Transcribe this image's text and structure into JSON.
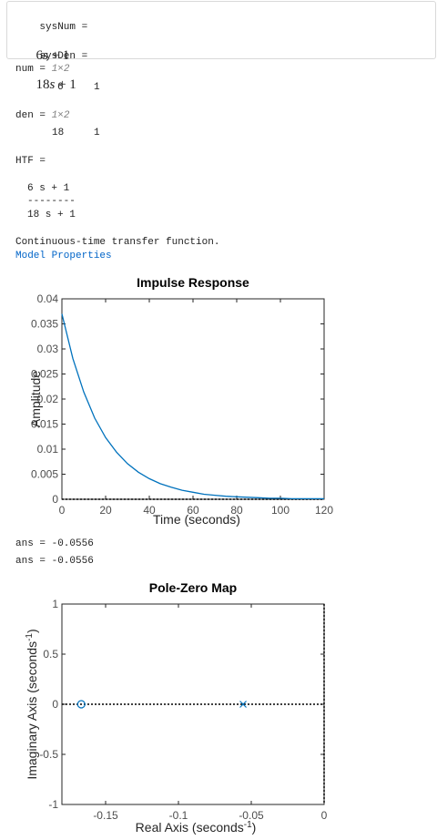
{
  "symbolic": {
    "num_label": "sysNum =",
    "num_coef": "6",
    "num_var": "s",
    "num_rest": "+ 1",
    "den_label": "sysDen =",
    "den_coef": "18",
    "den_var": "s",
    "den_rest": "+ 1"
  },
  "output": {
    "num_label": "num =",
    "num_size": "1×2",
    "num_values": [
      "6",
      "1"
    ],
    "den_label": "den =",
    "den_size": "1×2",
    "den_values": [
      "18",
      "1"
    ],
    "htf_label": "HTF =",
    "htf_numerator": "6 s + 1",
    "htf_bar": "--------",
    "htf_denominator": "18 s + 1",
    "tf_description": "Continuous-time transfer function.",
    "model_properties_link": "Model Properties",
    "ans1": "ans = -0.0556",
    "ans2": "ans = -0.0556"
  },
  "colors": {
    "series": "#0072bd",
    "link": "#0064c8",
    "axis": "#262626",
    "text": "#212121"
  },
  "chart_data": [
    {
      "type": "line",
      "title": "Impulse Response",
      "xlabel": "Time (seconds)",
      "ylabel": "Amplitude",
      "xlim": [
        0,
        120
      ],
      "ylim": [
        0,
        0.04
      ],
      "xticks": [
        0,
        20,
        40,
        60,
        80,
        100,
        120
      ],
      "xtick_labels": [
        "0",
        "20",
        "40",
        "60",
        "80",
        "100",
        "120"
      ],
      "yticks": [
        0,
        0.005,
        0.01,
        0.015,
        0.02,
        0.025,
        0.03,
        0.035,
        0.04
      ],
      "ytick_labels": [
        "0",
        "0.005",
        "0.01",
        "0.015",
        "0.02",
        "0.025",
        "0.03",
        "0.035",
        "0.04"
      ],
      "grid": false,
      "series": [
        {
          "x": [
            0,
            5,
            10,
            15,
            20,
            25,
            30,
            35,
            40,
            45,
            50,
            55,
            60,
            65,
            70,
            75,
            80,
            85,
            90,
            95,
            100,
            105,
            110,
            115,
            120
          ],
          "y": [
            0.037,
            0.0281,
            0.0214,
            0.0162,
            0.0123,
            0.0094,
            0.0071,
            0.0054,
            0.0041,
            0.0031,
            0.0024,
            0.0018,
            0.0014,
            0.001,
            0.0008,
            0.0006,
            0.0005,
            0.0004,
            0.0003,
            0.0002,
            0.0002,
            0.0001,
            0.0001,
            0.0001,
            0.0001
          ]
        }
      ]
    },
    {
      "type": "scatter",
      "title": "Pole-Zero Map",
      "xlabel": "Real Axis (seconds",
      "ylabel": "Imaginary Axis (seconds",
      "unit_exponent": "-1",
      "xlim": [
        -0.18,
        0
      ],
      "ylim": [
        -1,
        1
      ],
      "xticks": [
        -0.15,
        -0.1,
        -0.05,
        0
      ],
      "xtick_labels": [
        "-0.15",
        "-0.1",
        "-0.05",
        "0"
      ],
      "yticks": [
        -1,
        -0.5,
        0,
        0.5,
        1
      ],
      "ytick_labels": [
        "-1",
        "-0.5",
        "0",
        "0.5",
        "1"
      ],
      "grid": false,
      "zeros": [
        {
          "x": -0.1667,
          "y": 0
        }
      ],
      "poles": [
        {
          "x": -0.0556,
          "y": 0
        }
      ]
    }
  ]
}
